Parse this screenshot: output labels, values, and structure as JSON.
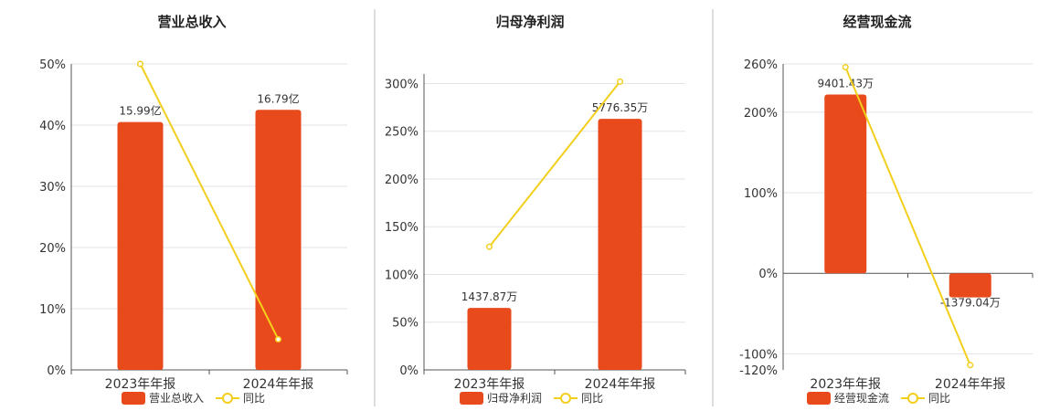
{
  "colors": {
    "bar": "#E84A1C",
    "line": "#F2CF1D",
    "grid": "#e3e3ea",
    "axis": "#555555"
  },
  "legend": {
    "line_label": "同比"
  },
  "chart_data": [
    {
      "type": "bar",
      "title": "营业总收入",
      "categories": [
        "2023年年报",
        "2024年年报"
      ],
      "series": [
        {
          "name": "营业总收入",
          "type": "bar",
          "values": [
            40.5,
            42.5
          ],
          "labels": [
            "15.99亿",
            "16.79亿"
          ]
        },
        {
          "name": "同比",
          "type": "line",
          "values": [
            50,
            5
          ]
        }
      ],
      "ylim": [
        0,
        50
      ],
      "yticks": [
        0,
        10,
        20,
        30,
        40,
        50
      ],
      "ytick_labels": [
        "0%",
        "10%",
        "20%",
        "30%",
        "40%",
        "50%"
      ],
      "grid": true,
      "legend_position": "bottom"
    },
    {
      "type": "bar",
      "title": "归母净利润",
      "categories": [
        "2023年年报",
        "2024年年报"
      ],
      "series": [
        {
          "name": "归母净利润",
          "type": "bar",
          "values": [
            65,
            263
          ],
          "labels": [
            "1437.87万",
            "5776.35万"
          ]
        },
        {
          "name": "同比",
          "type": "line",
          "values": [
            129,
            302
          ]
        }
      ],
      "ylim": [
        0,
        310
      ],
      "yticks": [
        0,
        50,
        100,
        150,
        200,
        250,
        300
      ],
      "ytick_labels": [
        "0%",
        "50%",
        "100%",
        "150%",
        "200%",
        "250%",
        "300%"
      ],
      "grid": true,
      "legend_position": "bottom"
    },
    {
      "type": "bar",
      "title": "经营现金流",
      "categories": [
        "2023年年报",
        "2024年年报"
      ],
      "series": [
        {
          "name": "经营现金流",
          "type": "bar",
          "values": [
            222,
            -30
          ],
          "labels": [
            "9401.43万",
            "-1379.04万"
          ]
        },
        {
          "name": "同比",
          "type": "line",
          "values": [
            256,
            -114
          ]
        }
      ],
      "ylim": [
        -120,
        260
      ],
      "yticks": [
        -120,
        -100,
        0,
        100,
        200,
        260
      ],
      "ytick_labels": [
        "-120%",
        "-100%",
        "0%",
        "100%",
        "200%",
        "260%"
      ],
      "grid": true,
      "legend_position": "bottom"
    }
  ]
}
